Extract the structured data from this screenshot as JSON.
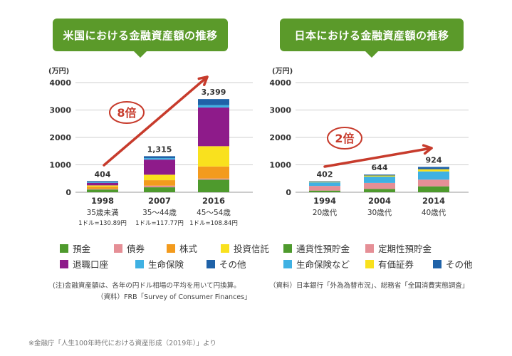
{
  "source_note": "※金融庁「人生100年時代における資産形成（2019年）」より",
  "chart_data": [
    {
      "type": "bar",
      "stacked": true,
      "title": "米国における金融資産額の推移",
      "ylabel": "(万円)",
      "ylim": [
        0,
        4000
      ],
      "yticks": [
        "0",
        "1000",
        "2000",
        "3000",
        "4000"
      ],
      "grid": true,
      "categories": [
        "1998",
        "2007",
        "2016"
      ],
      "category_sublabels": [
        "35歳未満",
        "35～44歳",
        "45～54歳"
      ],
      "category_notes": [
        "1ドル=130.89円",
        "1ドル=117.77円",
        "1ドル=108.84円"
      ],
      "totals": [
        404,
        1315,
        3399
      ],
      "total_labels": [
        "404",
        "1,315",
        "3,399"
      ],
      "series": [
        {
          "name": "預金",
          "color": "#4e9a2d",
          "values": [
            100,
            180,
            460
          ]
        },
        {
          "name": "債券",
          "color": "#e58f96",
          "values": [
            20,
            60,
            40
          ]
        },
        {
          "name": "株式",
          "color": "#f39b1d",
          "values": [
            80,
            200,
            440
          ]
        },
        {
          "name": "投資信託",
          "color": "#f9e11e",
          "values": [
            50,
            200,
            740
          ]
        },
        {
          "name": "退職口座",
          "color": "#8e1b8a",
          "values": [
            90,
            550,
            1410
          ]
        },
        {
          "name": "生命保険",
          "color": "#3fb1e3",
          "values": [
            20,
            55,
            85
          ]
        },
        {
          "name": "その他",
          "color": "#1f62a8",
          "values": [
            44,
            70,
            224
          ]
        }
      ],
      "annotation": {
        "label": "8倍",
        "color": "#c73b2c"
      }
    },
    {
      "type": "bar",
      "stacked": true,
      "title": "日本における金融資産額の推移",
      "ylabel": "(万円)",
      "ylim": [
        0,
        4000
      ],
      "yticks": [
        "0",
        "1000",
        "2000",
        "3000",
        "4000"
      ],
      "grid": true,
      "categories": [
        "1994",
        "2004",
        "2014"
      ],
      "category_sublabels": [
        "20歳代",
        "30歳代",
        "40歳代"
      ],
      "totals": [
        402,
        644,
        924
      ],
      "total_labels": [
        "402",
        "644",
        "924"
      ],
      "series": [
        {
          "name": "通貨性預貯金",
          "color": "#4e9a2d",
          "values": [
            60,
            120,
            215
          ]
        },
        {
          "name": "定期性預貯金",
          "color": "#e58f96",
          "values": [
            170,
            220,
            245
          ]
        },
        {
          "name": "生命保険など",
          "color": "#3fb1e3",
          "values": [
            130,
            230,
            300
          ]
        },
        {
          "name": "有価証券",
          "color": "#f9e11e",
          "values": [
            20,
            40,
            80
          ]
        },
        {
          "name": "その他",
          "color": "#1f62a8",
          "values": [
            22,
            34,
            84
          ]
        }
      ],
      "annotation": {
        "label": "2倍",
        "color": "#c73b2c"
      }
    }
  ],
  "notes_us": [
    "(注)金融資産額は、各年の円ドル相場の平均を用いて円換算。",
    "（資料）FRB「Survey of Consumer Finances」"
  ],
  "notes_jp": [
    "（資料）日本銀行「外為為替市況」、総務省「全国消費実態調査」"
  ]
}
